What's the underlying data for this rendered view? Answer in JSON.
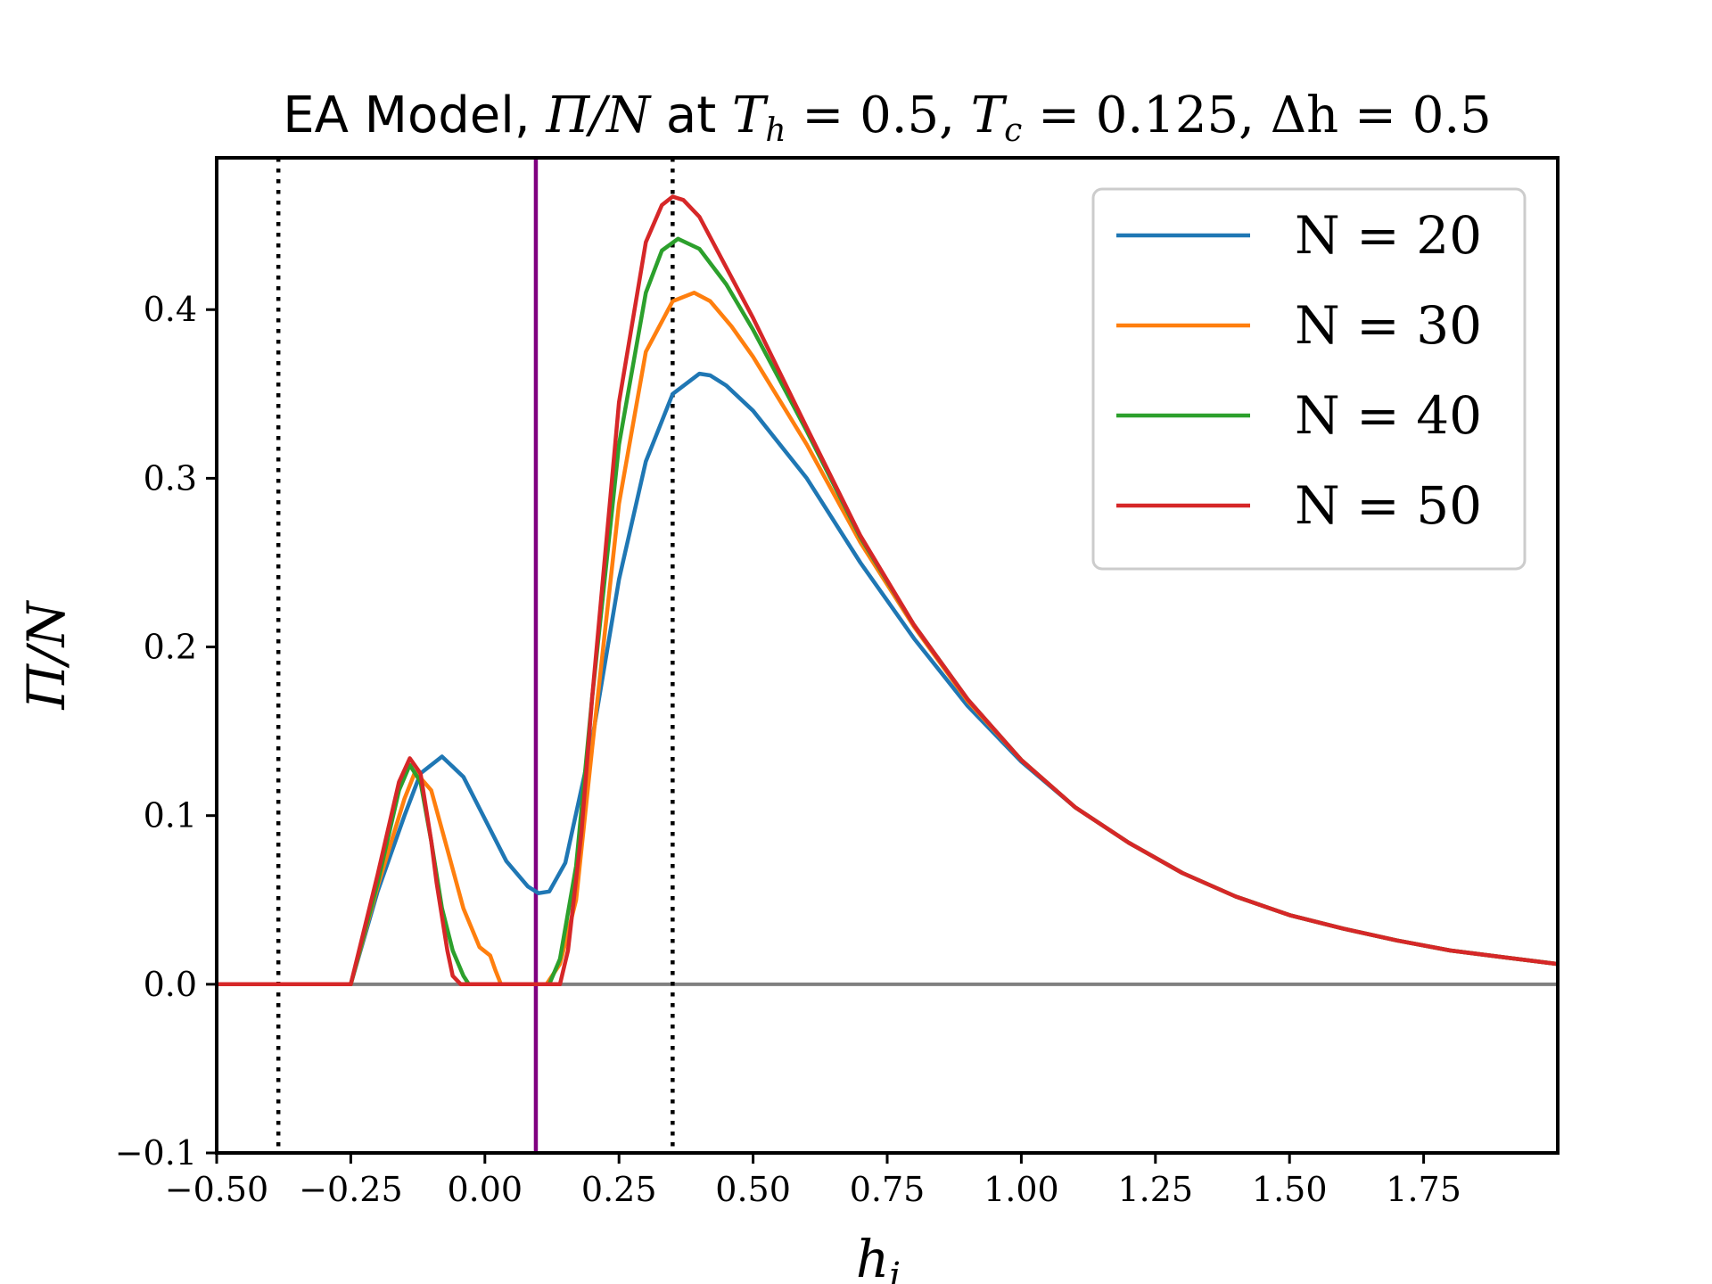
{
  "chart_data": {
    "type": "line",
    "title": "EA Model, Π/N at T_h = 0.5, T_c = 0.125, Δh = 0.5",
    "title_parts": {
      "prefix": "EA Model, ",
      "pi_n": "Π/N",
      "at": " at ",
      "th": "T",
      "th_sub": "h",
      "th_val": " = 0.5, ",
      "tc": "T",
      "tc_sub": "c",
      "tc_val": " = 0.125, ",
      "dh": "Δh = 0.5"
    },
    "xlabel": "h",
    "xlabel_sub": "i",
    "ylabel": "Π/N",
    "xlim": [
      -0.5,
      2.0
    ],
    "ylim": [
      -0.1,
      0.49
    ],
    "x_ticks": [
      -0.5,
      -0.25,
      0.0,
      0.25,
      0.5,
      0.75,
      1.0,
      1.25,
      1.5,
      1.75
    ],
    "x_tick_labels": [
      "−0.50",
      "−0.25",
      "0.00",
      "0.25",
      "0.50",
      "0.75",
      "1.00",
      "1.25",
      "1.50",
      "1.75"
    ],
    "y_ticks": [
      -0.1,
      0.0,
      0.1,
      0.2,
      0.3,
      0.4
    ],
    "y_tick_labels": [
      "−0.1",
      "0.0",
      "0.1",
      "0.2",
      "0.3",
      "0.4"
    ],
    "grid": false,
    "legend_position": "top-right",
    "reference_lines": {
      "dotted_vertical_x": [
        -0.385,
        0.35
      ],
      "solid_vertical_x": 0.095,
      "horizontal_y": 0.0,
      "dotted_color": "#000000",
      "solid_vertical_color": "#800080",
      "horizontal_color": "#808080"
    },
    "series": [
      {
        "name": "N = 20",
        "color": "#1f77b4",
        "x": [
          -0.5,
          -0.25,
          -0.2,
          -0.15,
          -0.12,
          -0.08,
          -0.04,
          0.0,
          0.04,
          0.08,
          0.1,
          0.12,
          0.15,
          0.2,
          0.25,
          0.3,
          0.35,
          0.4,
          0.42,
          0.45,
          0.5,
          0.6,
          0.7,
          0.8,
          0.9,
          1.0,
          1.1,
          1.2,
          1.3,
          1.4,
          1.5,
          1.6,
          1.7,
          1.8,
          1.9,
          2.0
        ],
        "y": [
          0.0,
          0.0,
          0.055,
          0.1,
          0.125,
          0.135,
          0.123,
          0.098,
          0.073,
          0.058,
          0.054,
          0.055,
          0.072,
          0.145,
          0.24,
          0.31,
          0.35,
          0.362,
          0.361,
          0.355,
          0.34,
          0.3,
          0.25,
          0.205,
          0.165,
          0.132,
          0.105,
          0.084,
          0.066,
          0.052,
          0.041,
          0.033,
          0.026,
          0.02,
          0.016,
          0.012
        ]
      },
      {
        "name": "N = 30",
        "color": "#ff7f0e",
        "x": [
          -0.5,
          -0.25,
          -0.2,
          -0.15,
          -0.13,
          -0.1,
          -0.07,
          -0.04,
          -0.01,
          0.01,
          0.02,
          0.03,
          0.1,
          0.115,
          0.14,
          0.17,
          0.2,
          0.25,
          0.3,
          0.35,
          0.39,
          0.42,
          0.46,
          0.5,
          0.6,
          0.7,
          0.8,
          0.9,
          1.0,
          1.1,
          1.2,
          1.3,
          1.4,
          1.5,
          1.6,
          1.7,
          1.8,
          1.9,
          2.0
        ],
        "y": [
          0.0,
          0.0,
          0.058,
          0.11,
          0.126,
          0.115,
          0.08,
          0.045,
          0.022,
          0.017,
          0.008,
          0.0,
          0.0,
          0.0,
          0.012,
          0.05,
          0.14,
          0.285,
          0.375,
          0.405,
          0.41,
          0.405,
          0.39,
          0.372,
          0.32,
          0.262,
          0.212,
          0.168,
          0.133,
          0.105,
          0.084,
          0.066,
          0.052,
          0.041,
          0.033,
          0.026,
          0.02,
          0.016,
          0.012
        ]
      },
      {
        "name": "N = 40",
        "color": "#2ca02c",
        "x": [
          -0.5,
          -0.25,
          -0.2,
          -0.16,
          -0.14,
          -0.12,
          -0.1,
          -0.08,
          -0.06,
          -0.04,
          -0.03,
          0.12,
          0.14,
          0.17,
          0.2,
          0.25,
          0.3,
          0.33,
          0.36,
          0.4,
          0.45,
          0.5,
          0.6,
          0.7,
          0.8,
          0.9,
          1.0,
          1.1,
          1.2,
          1.3,
          1.4,
          1.5,
          1.6,
          1.7,
          1.8,
          1.9,
          2.0
        ],
        "y": [
          0.0,
          0.0,
          0.06,
          0.115,
          0.13,
          0.12,
          0.085,
          0.045,
          0.02,
          0.005,
          0.0,
          0.0,
          0.015,
          0.07,
          0.17,
          0.32,
          0.41,
          0.435,
          0.442,
          0.436,
          0.415,
          0.388,
          0.328,
          0.265,
          0.213,
          0.169,
          0.133,
          0.105,
          0.084,
          0.066,
          0.052,
          0.041,
          0.033,
          0.026,
          0.02,
          0.016,
          0.012
        ]
      },
      {
        "name": "N = 50",
        "color": "#d62728",
        "x": [
          -0.5,
          -0.25,
          -0.2,
          -0.16,
          -0.14,
          -0.12,
          -0.1,
          -0.09,
          -0.07,
          -0.06,
          -0.045,
          0.14,
          0.155,
          0.18,
          0.2,
          0.25,
          0.3,
          0.33,
          0.35,
          0.37,
          0.4,
          0.45,
          0.5,
          0.6,
          0.7,
          0.8,
          0.9,
          1.0,
          1.1,
          1.2,
          1.3,
          1.4,
          1.5,
          1.6,
          1.7,
          1.8,
          1.9,
          2.0
        ],
        "y": [
          0.0,
          0.0,
          0.065,
          0.12,
          0.134,
          0.125,
          0.085,
          0.06,
          0.02,
          0.005,
          0.0,
          0.0,
          0.02,
          0.09,
          0.17,
          0.345,
          0.44,
          0.462,
          0.467,
          0.465,
          0.455,
          0.425,
          0.395,
          0.33,
          0.266,
          0.213,
          0.169,
          0.133,
          0.105,
          0.084,
          0.066,
          0.052,
          0.041,
          0.033,
          0.026,
          0.02,
          0.016,
          0.012
        ]
      }
    ]
  }
}
